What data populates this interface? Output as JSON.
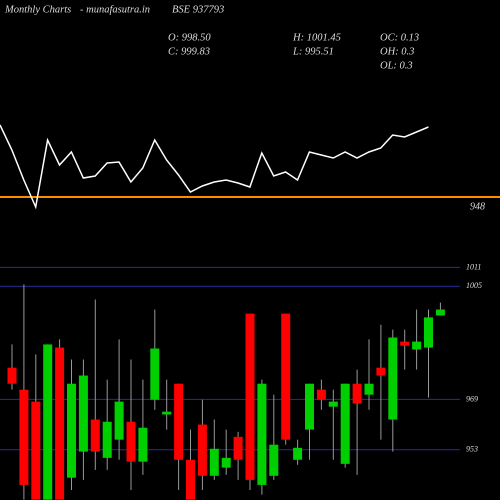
{
  "header": {
    "site": "Monthly Charts",
    "domain": "- munafasutra.in",
    "symbol": "BSE 937793",
    "open": "O: 998.50",
    "high": "H: 1001.45",
    "oc": "OC: 0.13",
    "close": "C: 999.83",
    "low": "L: 995.51",
    "oh": "OH: 0.3",
    "ol": "OL: 0.3"
  },
  "chart_data": [
    {
      "type": "line",
      "color": "#ffffff",
      "values": [
        984,
        971.5,
        956.5,
        943,
        976.5,
        964,
        970.5,
        957.5,
        958.5,
        965,
        965.5,
        955.5,
        962.5,
        976.5,
        966.5,
        959,
        950.5,
        953.5,
        955.5,
        956.5,
        955,
        953,
        970,
        958.5,
        960.5,
        956.5,
        970.5,
        969,
        967.5,
        970.5,
        967.5,
        970.5,
        972.5,
        979,
        978,
        980.5,
        983
      ],
      "ylim": [
        936.5,
        996.5
      ],
      "yticks": [
        948
      ],
      "grid_color": "#ff8c00"
    },
    {
      "type": "candlestick",
      "up_color": "#00d000",
      "down_color": "#ff0000",
      "grid_color": "#2a2aa0",
      "open": [
        979.1,
        972.1,
        968.3,
        937.1,
        985.5,
        944.1,
        952.4,
        962.6,
        950.4,
        956.2,
        961.9,
        949.2,
        968.9,
        964.2,
        974.0,
        949.8,
        961.0,
        944.7,
        947.3,
        957.1,
        996.3,
        941.8,
        944.7,
        996.3,
        949.8,
        959.4,
        972.1,
        966.7,
        948.5,
        974.0,
        970.5,
        979.1,
        962.6,
        987.4,
        984.9,
        985.5,
        995.7
      ],
      "high": [
        986.5,
        1005.6,
        983.3,
        986.5,
        988.1,
        981.7,
        981.7,
        1000.8,
        975.3,
        988.1,
        981.7,
        975.3,
        997.6,
        975.3,
        974.0,
        959.4,
        968.9,
        962.6,
        959.4,
        958.7,
        996.3,
        975.3,
        970.5,
        996.3,
        956.2,
        974.0,
        975.3,
        972.1,
        974.0,
        978.5,
        988.1,
        992.8,
        991.2,
        991.2,
        997.6,
        997.6,
        999.8
      ],
      "low": [
        972.1,
        937.1,
        937.1,
        937.1,
        937.1,
        940.2,
        943.4,
        946.6,
        946.6,
        949.8,
        940.2,
        945.0,
        965.7,
        959.4,
        940.2,
        937.1,
        940.2,
        943.4,
        945.0,
        943.4,
        940.2,
        938.7,
        943.4,
        954.6,
        948.2,
        949.8,
        965.7,
        949.8,
        947.3,
        945.0,
        965.7,
        956.2,
        952.4,
        978.5,
        978.5,
        969.6,
        995.7
      ],
      "close": [
        974.0,
        941.8,
        937.1,
        986.5,
        937.1,
        974.0,
        976.6,
        952.4,
        961.9,
        968.3,
        949.2,
        960.0,
        985.2,
        965.1,
        949.8,
        937.1,
        944.7,
        953.3,
        950.4,
        949.8,
        943.4,
        974.0,
        954.6,
        956.2,
        953.6,
        974.0,
        968.9,
        968.3,
        974.0,
        967.7,
        974.0,
        976.6,
        988.7,
        986.1,
        987.4,
        995.1,
        997.6
      ],
      "ylim": [
        937,
        1014
      ],
      "yticks": [
        1011,
        1005,
        969,
        953
      ]
    }
  ]
}
